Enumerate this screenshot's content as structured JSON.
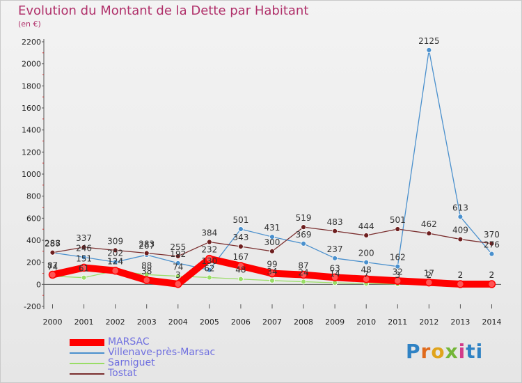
{
  "title": "Evolution du Montant de la Dette par Habitant",
  "subtitle": "(en €)",
  "logo": {
    "text": "Proxiti",
    "letters": [
      "P",
      "r",
      "o",
      "x",
      "i",
      "ti"
    ]
  },
  "legend": [
    {
      "name": "MARSAC",
      "color": "#ff0000"
    },
    {
      "name": "Villenave-près-Marsac",
      "color": "#4a90cd"
    },
    {
      "name": "Sarniguet",
      "color": "#99dd66"
    },
    {
      "name": "Tostat",
      "color": "#7a2e2e"
    }
  ],
  "chart_data": {
    "type": "line",
    "title": "Evolution du Montant de la Dette par Habitant",
    "subtitle": "(en €)",
    "x": [
      "2000",
      "2001",
      "2002",
      "2003",
      "2004",
      "2005",
      "2006",
      "2007",
      "2008",
      "2009",
      "2010",
      "2011",
      "2012",
      "2013",
      "2014"
    ],
    "ylim": [
      -200,
      2200
    ],
    "yticks": [
      "-200",
      "0",
      "200",
      "400",
      "600",
      "800",
      "1000",
      "1200",
      "1400",
      "1600",
      "1800",
      "2000",
      "2200"
    ],
    "grid": false,
    "legend_position": "bottom-left",
    "series": [
      {
        "name": "MARSAC",
        "color": "#ff0000",
        "marker": "#ff5555",
        "values": [
          87,
          151,
          124,
          38,
          3,
          232,
          167,
          99,
          87,
          63,
          48,
          32,
          17,
          2,
          2
        ],
        "labels": [
          "87",
          "151",
          "124",
          "38",
          "3",
          "232",
          "167",
          "99",
          "87",
          "63",
          "48",
          "32",
          "17",
          "2",
          "2"
        ]
      },
      {
        "name": "Villenave-près-Marsac",
        "color": "#4a90cd",
        "marker": "#4a90cd",
        "values": [
          287,
          246,
          202,
          267,
          192,
          130,
          501,
          431,
          369,
          237,
          200,
          162,
          2125,
          613,
          276
        ],
        "labels": [
          "287",
          "246",
          "202",
          "267",
          "192",
          "130",
          "501",
          "431",
          "369",
          "237",
          "200",
          "162",
          "2125",
          "613",
          "276"
        ]
      },
      {
        "name": "Sarniguet",
        "color": "#99dd66",
        "marker": "#99dd66",
        "values": [
          74,
          61,
          124,
          88,
          74,
          62,
          48,
          34,
          24,
          14,
          7,
          3,
          2,
          2,
          2
        ],
        "labels": [
          "74",
          "61",
          "124",
          "88",
          "74",
          "62",
          "48",
          "34",
          "24",
          "14",
          "7",
          "3",
          "2",
          "2",
          "2"
        ]
      },
      {
        "name": "Tostat",
        "color": "#7a2e2e",
        "marker": "#6e1f1f",
        "values": [
          288,
          337,
          309,
          283,
          255,
          384,
          343,
          300,
          519,
          483,
          444,
          501,
          462,
          409,
          370
        ],
        "labels": [
          "288",
          "337",
          "309",
          "283",
          "255",
          "384",
          "343",
          "300",
          "519",
          "483",
          "444",
          "501",
          "462",
          "409",
          "370"
        ]
      }
    ]
  }
}
